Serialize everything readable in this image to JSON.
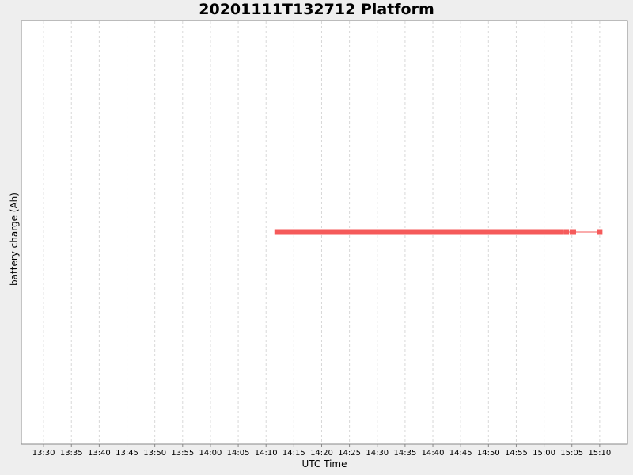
{
  "chart_data": {
    "type": "scatter",
    "title": "20201111T132712 Platform",
    "xlabel": "UTC Time",
    "ylabel": "battery charge (Ah)",
    "x_tick_labels": [
      "13:30",
      "13:35",
      "13:40",
      "13:45",
      "13:50",
      "13:55",
      "14:00",
      "14:05",
      "14:10",
      "14:15",
      "14:20",
      "14:25",
      "14:30",
      "14:35",
      "14:40",
      "14:45",
      "14:50",
      "14:55",
      "15:00",
      "15:05",
      "15:10"
    ],
    "xlim": [
      "13:26",
      "15:15"
    ],
    "grid": {
      "vertical": true,
      "horizontal": false,
      "style": "dashed"
    },
    "series": [
      {
        "color": "#f55a5a",
        "marker": "square",
        "dense_range": [
          "14:12",
          "15:03"
        ],
        "points": [
          "15:04",
          "15:05:15",
          "15:10"
        ]
      }
    ]
  }
}
